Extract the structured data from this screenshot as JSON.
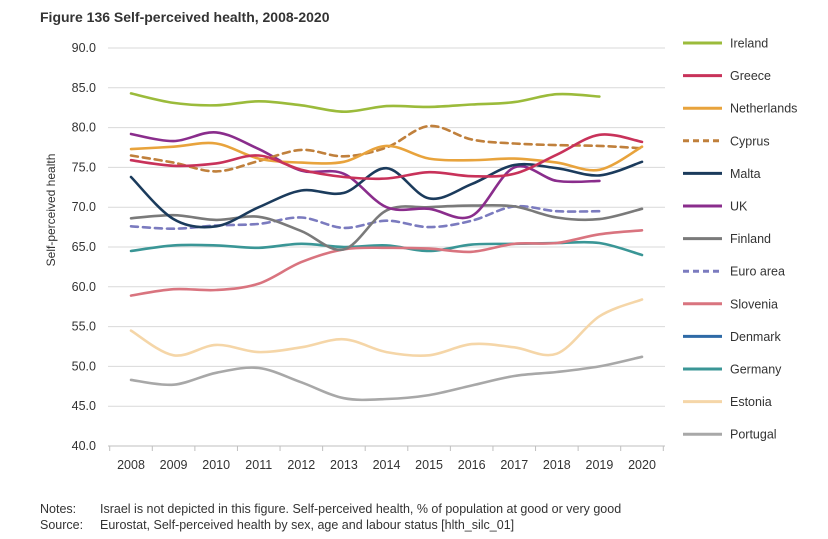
{
  "figure_title": "Figure 136 Self-perceived health, 2008-2020",
  "notes": {
    "notes_label": "Notes:",
    "notes_text": "Israel is not depicted in this figure. Self-perceived health, % of population at good or very good",
    "source_label": "Source:",
    "source_text": "Eurostat, Self-perceived health by sex, age and labour status [hlth_silc_01]"
  },
  "chart_data": {
    "type": "line",
    "title": "Figure 136 Self-perceived health, 2008-2020",
    "xlabel": "",
    "ylabel": "Self-perceived health",
    "ylim": [
      40,
      90
    ],
    "y_ticks": [
      "40.0",
      "45.0",
      "50.0",
      "55.0",
      "60.0",
      "65.0",
      "70.0",
      "75.0",
      "80.0",
      "85.0",
      "90.0"
    ],
    "x": [
      "2008",
      "2009",
      "2010",
      "2011",
      "2012",
      "2013",
      "2014",
      "2015",
      "2016",
      "2017",
      "2018",
      "2019",
      "2020"
    ],
    "grid": "horizontal",
    "legend_position": "right",
    "series": [
      {
        "name": "Ireland",
        "color": "#9bbb3b",
        "dashed": false,
        "values": [
          84.3,
          83.1,
          82.8,
          83.3,
          82.8,
          82.0,
          82.7,
          82.6,
          82.9,
          83.2,
          84.2,
          83.9,
          null
        ]
      },
      {
        "name": "Greece",
        "color": "#c8325a",
        "dashed": false,
        "values": [
          75.9,
          75.2,
          75.5,
          76.5,
          74.7,
          73.8,
          73.6,
          74.4,
          73.9,
          74.2,
          76.6,
          79.1,
          78.2
        ]
      },
      {
        "name": "Netherlands",
        "color": "#e8a33c",
        "dashed": false,
        "values": [
          77.3,
          77.6,
          78.0,
          76.1,
          75.6,
          75.7,
          77.7,
          76.1,
          75.9,
          76.1,
          75.6,
          74.7,
          77.6
        ]
      },
      {
        "name": "Cyprus",
        "color": "#c0803c",
        "dashed": true,
        "values": [
          76.5,
          75.6,
          74.5,
          75.8,
          77.2,
          76.4,
          77.5,
          80.2,
          78.5,
          78.0,
          77.8,
          77.7,
          77.4
        ]
      },
      {
        "name": "Malta",
        "color": "#1b3b5c",
        "dashed": false,
        "values": [
          73.8,
          68.5,
          67.6,
          70.0,
          72.1,
          71.8,
          74.9,
          71.1,
          72.9,
          75.3,
          74.9,
          74.0,
          75.7
        ]
      },
      {
        "name": "UK",
        "color": "#8a2d8c",
        "dashed": false,
        "values": [
          79.2,
          78.3,
          79.4,
          77.3,
          74.6,
          74.2,
          70.0,
          69.8,
          68.9,
          75.0,
          73.3,
          73.3,
          null
        ]
      },
      {
        "name": "Finland",
        "color": "#7a7a7a",
        "dashed": false,
        "values": [
          68.6,
          69.0,
          68.4,
          68.8,
          67.0,
          64.7,
          69.6,
          70.0,
          70.2,
          70.1,
          68.7,
          68.5,
          69.8
        ]
      },
      {
        "name": "Euro area",
        "color": "#7b7bbf",
        "dashed": true,
        "values": [
          67.6,
          67.3,
          67.7,
          67.9,
          68.7,
          67.4,
          68.3,
          67.5,
          68.3,
          70.1,
          69.5,
          69.5,
          null
        ]
      },
      {
        "name": "Slovenia",
        "color": "#d9747f",
        "dashed": false,
        "values": [
          58.9,
          59.7,
          59.6,
          60.4,
          63.1,
          64.7,
          64.9,
          64.8,
          64.4,
          65.4,
          65.5,
          66.6,
          67.1
        ]
      },
      {
        "name": "Denmark",
        "color": "#2e6aa6",
        "dashed": false,
        "values": [
          null,
          null,
          null,
          null,
          null,
          null,
          null,
          null,
          null,
          null,
          null,
          null,
          null
        ]
      },
      {
        "name": "Germany",
        "color": "#3a9696",
        "dashed": false,
        "values": [
          64.5,
          65.2,
          65.2,
          64.9,
          65.4,
          65.0,
          65.2,
          64.5,
          65.3,
          65.4,
          65.5,
          65.5,
          64.0
        ]
      },
      {
        "name": "Estonia",
        "color": "#f5d6a8",
        "dashed": false,
        "values": [
          54.5,
          51.4,
          52.7,
          51.8,
          52.4,
          53.4,
          51.8,
          51.4,
          52.8,
          52.4,
          51.6,
          56.3,
          58.4
        ]
      },
      {
        "name": "Portugal",
        "color": "#a8a8a8",
        "dashed": false,
        "values": [
          48.3,
          47.7,
          49.2,
          49.8,
          48.0,
          46.0,
          45.9,
          46.4,
          47.6,
          48.8,
          49.3,
          50.0,
          51.2
        ]
      }
    ]
  }
}
